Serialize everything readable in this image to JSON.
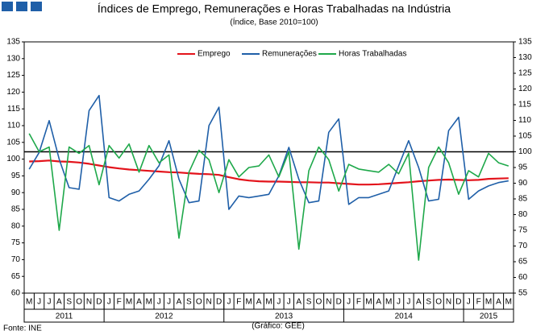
{
  "chart_data": {
    "type": "line",
    "title": "Índices de Emprego, Remunerações e Horas Trabalhadas na Indústria",
    "subtitle": "(Índice, Base 2010=100)",
    "source": "Fonte: INE",
    "credit": "(Gráfico: GEE)",
    "categories": [
      "M",
      "J",
      "J",
      "A",
      "S",
      "O",
      "N",
      "D",
      "J",
      "F",
      "M",
      "A",
      "M",
      "J",
      "J",
      "A",
      "S",
      "O",
      "N",
      "D",
      "J",
      "F",
      "M",
      "A",
      "M",
      "J",
      "J",
      "A",
      "S",
      "O",
      "N",
      "D",
      "J",
      "F",
      "M",
      "A",
      "M",
      "J",
      "J",
      "A",
      "S",
      "O",
      "N",
      "D",
      "J",
      "F",
      "M",
      "A",
      "M"
    ],
    "year_groups": [
      {
        "label": "2011",
        "count": 8
      },
      {
        "label": "2012",
        "count": 12
      },
      {
        "label": "2013",
        "count": 12
      },
      {
        "label": "2014",
        "count": 12
      },
      {
        "label": "2015",
        "count": 5
      }
    ],
    "series": [
      {
        "name": "Emprego",
        "color": "#e3131b",
        "axis": "y",
        "values": [
          99.3,
          99.4,
          99.6,
          99.3,
          99.2,
          99.0,
          98.6,
          98.1,
          97.6,
          97.2,
          96.9,
          96.7,
          96.5,
          96.3,
          96.1,
          96.0,
          95.8,
          95.6,
          95.5,
          95.3,
          94.6,
          94.0,
          93.6,
          93.4,
          93.3,
          93.3,
          93.2,
          93.1,
          93.1,
          93.0,
          93.0,
          92.8,
          92.6,
          92.4,
          92.4,
          92.5,
          92.7,
          92.9,
          93.1,
          93.4,
          93.6,
          93.8,
          93.9,
          93.8,
          93.7,
          93.8,
          94.1,
          94.2,
          94.3
        ]
      },
      {
        "name": "Remunerações",
        "color": "#1f5fa8",
        "axis": "y",
        "values": [
          97,
          102,
          111.5,
          100,
          91.5,
          91,
          114.5,
          119,
          88.5,
          87.5,
          89.5,
          90.5,
          94,
          98,
          105.5,
          94,
          87,
          87.5,
          110,
          115.5,
          85,
          89,
          88.5,
          89,
          89.5,
          95,
          103.5,
          94,
          87,
          87.5,
          108,
          112,
          86.5,
          88.5,
          88.5,
          89.5,
          90.5,
          98,
          105.5,
          97.5,
          87.5,
          88,
          108.5,
          112.5,
          88,
          90.5,
          92,
          93,
          93.5
        ]
      },
      {
        "name": "Horas Trabalhadas",
        "color": "#1ea84a",
        "axis": "y2",
        "values": [
          105.8,
          100,
          101.5,
          75,
          101.5,
          99.5,
          102,
          89.5,
          102,
          98,
          102.5,
          93.5,
          102,
          96.5,
          99,
          72.5,
          93.5,
          100.5,
          97.5,
          87,
          97.5,
          92,
          95,
          95.5,
          99,
          92,
          100,
          69,
          94,
          101.5,
          97.5,
          87.5,
          96,
          94.5,
          94,
          93.5,
          96,
          93,
          99.5,
          65.5,
          95,
          101.5,
          96.5,
          86.5,
          94,
          92,
          99.5,
          96.5,
          95.5
        ]
      }
    ],
    "ylim": [
      60,
      135
    ],
    "yticks": [
      60,
      65,
      70,
      75,
      80,
      85,
      90,
      95,
      100,
      105,
      110,
      115,
      120,
      125,
      130,
      135
    ],
    "y2lim": [
      55,
      135
    ],
    "y2ticks": [
      55,
      60,
      65,
      70,
      75,
      80,
      85,
      90,
      95,
      100,
      105,
      110,
      115,
      120,
      125,
      130,
      135
    ],
    "reference_line": {
      "value": 100,
      "axis": "y2",
      "color": "#000000"
    },
    "legend": "top"
  }
}
